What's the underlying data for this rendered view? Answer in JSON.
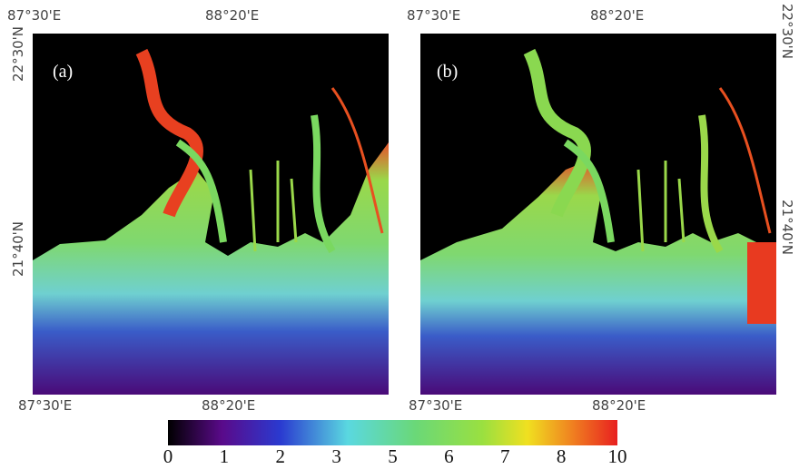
{
  "panels": [
    {
      "label": "(a)",
      "top_labels": [
        "87°30'E",
        "88°20'E"
      ],
      "bottom_labels": [
        "87°30'E",
        "88°20'E"
      ],
      "side_labels": [
        "22°30'N",
        "21°40'N"
      ]
    },
    {
      "label": "(b)",
      "top_labels": [
        "87°30'E",
        "88°20'E"
      ],
      "bottom_labels": [
        "87°30'E",
        "88°20'E"
      ],
      "side_labels": [
        "22°30'N",
        "21°40'N"
      ]
    }
  ],
  "colorbar": {
    "ticks": [
      "0",
      "1",
      "2",
      "3",
      "5",
      "6",
      "7",
      "8",
      "10"
    ]
  }
}
